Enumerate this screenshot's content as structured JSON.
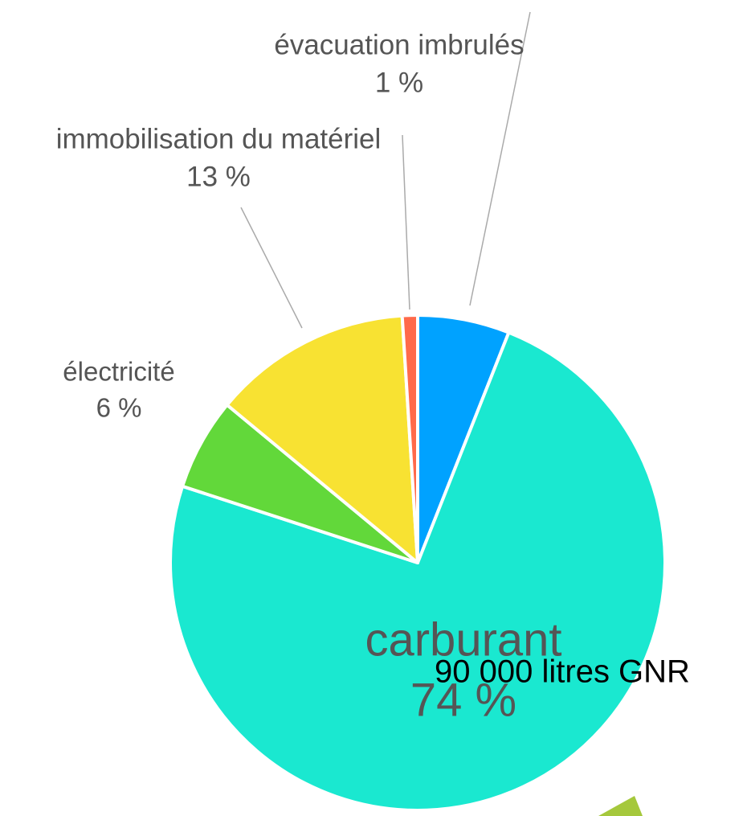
{
  "chart_data": {
    "type": "pie",
    "categories": [
      null,
      "carburant",
      "électricité",
      "immobilisation du matériel",
      "évacuation imbrulés"
    ],
    "values": [
      6,
      74,
      6,
      13,
      1
    ],
    "value_labels": [
      null,
      "74 %",
      "6 %",
      "13 %",
      "1 %"
    ],
    "colors": [
      "#00a2ff",
      "#1ae8d0",
      "#62d83a",
      "#f8e232",
      "#ff6a4a"
    ],
    "annotation": "90 000 litres GNR"
  }
}
